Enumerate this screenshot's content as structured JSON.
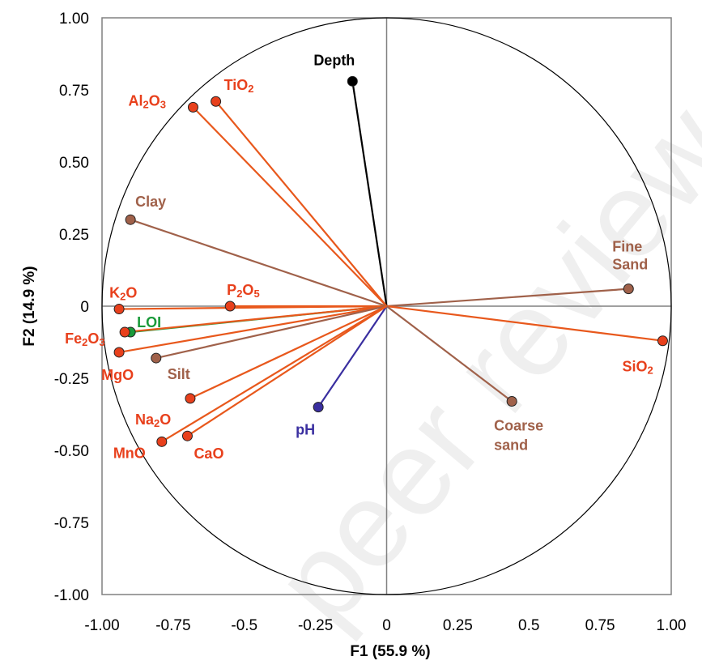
{
  "chart_data": {
    "type": "scatter",
    "subtype": "correlation-circle",
    "title": "",
    "xlabel": "F1 (55.9 %)",
    "ylabel": "F2 (14.9 %)",
    "xlim": [
      -1.0,
      1.0
    ],
    "ylim": [
      -1.0,
      1.0
    ],
    "x_ticks": [
      "-1.00",
      "-0.75",
      "-0.5",
      "-0.25",
      "0",
      "0.25",
      "0.5",
      "0.75",
      "1.00"
    ],
    "y_ticks": [
      "1.00",
      "0.75",
      "0.50",
      "0.25",
      "0",
      "-0.25",
      "-0.50",
      "-0.75",
      "-1.00"
    ],
    "grid": false,
    "legend": "none",
    "colors": {
      "oxide": "#e8401c",
      "oxide_line": "#e8581c",
      "texture": "#a0614a",
      "depth": "#000000",
      "ph": "#3a2fa0",
      "loi": "#1a9a3a",
      "circle": "#000000",
      "axes": "#808080"
    },
    "variables": [
      {
        "name": "Depth",
        "parts": [
          [
            "Depth",
            ""
          ]
        ],
        "x": -0.12,
        "y": 0.78,
        "group": "depth"
      },
      {
        "name": "TiO2",
        "parts": [
          [
            "TiO",
            ""
          ],
          [
            "2",
            "sub"
          ]
        ],
        "x": -0.6,
        "y": 0.71,
        "group": "oxide"
      },
      {
        "name": "Al2O3",
        "parts": [
          [
            "Al",
            ""
          ],
          [
            "2",
            "sub"
          ],
          [
            "O",
            ""
          ],
          [
            "3",
            "sub"
          ]
        ],
        "x": -0.68,
        "y": 0.69,
        "group": "oxide"
      },
      {
        "name": "Clay",
        "parts": [
          [
            "Clay",
            ""
          ]
        ],
        "x": -0.9,
        "y": 0.3,
        "group": "texture"
      },
      {
        "name": "Fine Sand",
        "parts": [
          [
            "Fine",
            ""
          ]
        ],
        "parts2": [
          [
            "Sand",
            ""
          ]
        ],
        "x": 0.85,
        "y": 0.06,
        "group": "texture"
      },
      {
        "name": "K2O",
        "parts": [
          [
            "K",
            ""
          ],
          [
            "2",
            "sub"
          ],
          [
            "O",
            ""
          ]
        ],
        "x": -0.94,
        "y": -0.01,
        "group": "oxide"
      },
      {
        "name": "P2O5",
        "parts": [
          [
            "P",
            ""
          ],
          [
            "2",
            "sub"
          ],
          [
            "O",
            ""
          ],
          [
            "5",
            "sub"
          ]
        ],
        "x": -0.55,
        "y": 0.0,
        "group": "oxide"
      },
      {
        "name": "LOI",
        "parts": [
          [
            "LOI",
            ""
          ]
        ],
        "x": -0.9,
        "y": -0.09,
        "group": "loi"
      },
      {
        "name": "Fe2O3",
        "parts": [
          [
            "Fe",
            ""
          ],
          [
            "2",
            "sub"
          ],
          [
            "O",
            ""
          ],
          [
            "3",
            "sub"
          ]
        ],
        "x": -0.92,
        "y": -0.09,
        "group": "oxide"
      },
      {
        "name": "MgO",
        "parts": [
          [
            "MgO",
            ""
          ]
        ],
        "x": -0.94,
        "y": -0.16,
        "group": "oxide"
      },
      {
        "name": "Silt",
        "parts": [
          [
            "Silt",
            ""
          ]
        ],
        "x": -0.81,
        "y": -0.18,
        "group": "texture"
      },
      {
        "name": "SiO2",
        "parts": [
          [
            "SiO",
            ""
          ],
          [
            "2",
            "sub"
          ]
        ],
        "x": 0.97,
        "y": -0.12,
        "group": "oxide"
      },
      {
        "name": "Na2O",
        "parts": [
          [
            "Na",
            ""
          ],
          [
            "2",
            "sub"
          ],
          [
            "O",
            ""
          ]
        ],
        "x": -0.69,
        "y": -0.32,
        "group": "oxide"
      },
      {
        "name": "pH",
        "parts": [
          [
            "pH",
            ""
          ]
        ],
        "x": -0.24,
        "y": -0.35,
        "group": "ph"
      },
      {
        "name": "Coarse sand",
        "parts": [
          [
            "Coarse",
            ""
          ]
        ],
        "parts2": [
          [
            "sand",
            ""
          ]
        ],
        "x": 0.44,
        "y": -0.33,
        "group": "texture"
      },
      {
        "name": "MnO",
        "parts": [
          [
            "MnO",
            ""
          ]
        ],
        "x": -0.79,
        "y": -0.47,
        "group": "oxide"
      },
      {
        "name": "CaO",
        "parts": [
          [
            "CaO",
            ""
          ]
        ],
        "x": -0.7,
        "y": -0.45,
        "group": "oxide"
      }
    ]
  },
  "watermark": "peer review"
}
